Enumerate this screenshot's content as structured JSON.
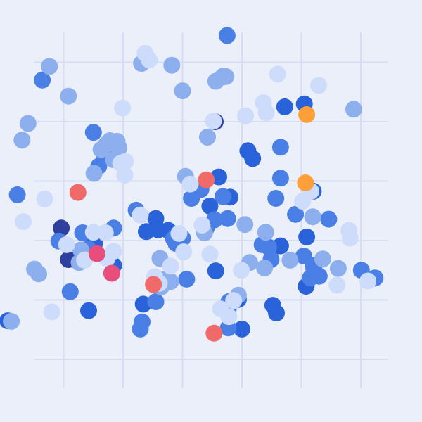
{
  "chart_data": {
    "type": "scatter",
    "title": "",
    "xlabel": "",
    "ylabel": "",
    "xlim": [
      0,
      6
    ],
    "ylim": [
      0,
      6
    ],
    "grid": true,
    "legend": "none",
    "colors": {
      "background": "#ebeff9",
      "grid": "#d6ddf1",
      "navy": "#2f3f9e",
      "blue": "#2a63d9",
      "mid_blue": "#4a80e6",
      "light_blue": "#8dafee",
      "pale_blue": "#cddcfb",
      "coral": "#f06a6a",
      "pink": "#e84d7c",
      "orange": "#ff9f3a"
    },
    "series": [
      {
        "color_key": "navy",
        "x": [
          0.96,
          1.08,
          3.55
        ],
        "y": [
          2.21,
          1.68,
          4.0
        ]
      },
      {
        "color_key": "blue",
        "x": [
          0.06,
          1.42,
          1.52,
          1.84,
          2.34,
          2.39,
          2.55,
          2.59,
          2.76,
          3.46,
          3.56,
          3.61,
          3.8,
          3.94,
          4.0,
          4.1,
          4.18,
          4.5,
          4.52,
          4.58,
          4.65,
          4.72,
          5.05,
          5.08,
          5.09,
          5.2
        ],
        "y": [
          0.65,
          0.82,
          1.95,
          1.58,
          0.93,
          2.15,
          2.37,
          2.18,
          2.17,
          2.58,
          1.49,
          3.07,
          2.73,
          1.01,
          0.51,
          3.51,
          3.38,
          1.86,
          0.91,
          0.78,
          1.91,
          4.25,
          4.3,
          1.23,
          2.06,
          2.83
        ]
      },
      {
        "color_key": "mid_blue",
        "x": [
          0.22,
          0.64,
          0.92,
          1.11,
          1.32,
          1.41,
          1.5,
          1.59,
          1.68,
          1.84,
          1.9,
          2.22,
          2.29,
          2.32,
          2.55,
          2.85,
          2.89,
          3.0,
          3.07,
          3.15,
          3.31,
          3.4,
          3.54,
          3.68,
          3.75,
          3.76,
          3.77,
          3.77,
          3.78,
          4.34,
          4.45,
          4.49,
          4.57,
          4.65,
          4.65,
          4.9,
          5.04,
          5.15,
          5.2,
          5.21,
          5.3,
          5.46,
          6.01,
          6.24
        ],
        "y": [
          2.77,
          4.7,
          1.99,
          1.14,
          2.13,
          1.86,
          3.82,
          3.25,
          3.45,
          2.21,
          3.37,
          2.51,
          0.51,
          0.63,
          0.97,
          2.03,
          1.95,
          2.04,
          1.35,
          2.71,
          2.86,
          2.21,
          2.35,
          2.74,
          5.45,
          2.37,
          0.53,
          0.85,
          0.97,
          1.93,
          1.89,
          1.68,
          2.71,
          3.05,
          3.57,
          2.44,
          1.74,
          1.37,
          1.58,
          1.53,
          1.4,
          2.36,
          1.5,
          1.37
        ]
      },
      {
        "color_key": "light_blue",
        "x": [
          0.12,
          0.3,
          0.4,
          0.51,
          0.58,
          0.76,
          1.08,
          1.26,
          1.29,
          1.51,
          1.63,
          1.72,
          1.78,
          1.84,
          1.9,
          1.93,
          2.31,
          2.58,
          2.62,
          2.64,
          2.68,
          2.8,
          2.82,
          3.0,
          3.05,
          3.37,
          3.42,
          3.56,
          3.67,
          3.69,
          3.73,
          3.94,
          4.05,
          4.13,
          4.38,
          4.4,
          4.81,
          5.19,
          5.36,
          5.62,
          5.88
        ],
        "y": [
          0.64,
          3.69,
          3.97,
          1.52,
          1.44,
          4.93,
          4.43,
          1.63,
          1.84,
          3.13,
          3.53,
          3.62,
          3.68,
          3.36,
          3.67,
          3.56,
          4.98,
          1.28,
          1.7,
          1.22,
          1.34,
          1.31,
          4.95,
          4.52,
          3.08,
          2.13,
          3.74,
          4.68,
          4.75,
          4.77,
          4.76,
          1.08,
          2.27,
          1.63,
          1.54,
          2.14,
          1.67,
          2.4,
          1.69,
          1.53,
          4.21
        ]
      },
      {
        "color_key": "pale_blue",
        "x": [
          0.32,
          0.68,
          0.8,
          1.05,
          1.35,
          1.5,
          1.7,
          1.73,
          1.84,
          1.96,
          1.99,
          2.03,
          2.04,
          2.29,
          2.37,
          2.44,
          2.53,
          2.61,
          2.8,
          2.94,
          3.02,
          3.13,
          3.33,
          3.46,
          3.52,
          3.64,
          3.78,
          3.86,
          3.99,
          4.06,
          4.36,
          4.41,
          4.6,
          5.02,
          5.16,
          5.29,
          5.6,
          5.8,
          5.82,
          6.12
        ],
        "y": [
          2.32,
          2.7,
          0.8,
          1.93,
          1.67,
          2.14,
          2.13,
          1.7,
          1.82,
          3.3,
          4.23,
          3.1,
          3.33,
          2.43,
          5.15,
          5.04,
          1.39,
          1.28,
          1.57,
          2.12,
          1.81,
          2.95,
          2.26,
          1.77,
          4.01,
          0.85,
          0.72,
          0.99,
          1.5,
          4.1,
          4.32,
          4.15,
          4.8,
          2.66,
          2.83,
          4.61,
          1.25,
          2.17,
          2.04,
          1.32
        ]
      },
      {
        "color_key": "coral",
        "x": [
          1.24,
          2.51,
          3.4,
          3.53
        ],
        "y": [
          2.81,
          1.26,
          3.02,
          0.44
        ]
      },
      {
        "color_key": "pink",
        "x": [
          1.56,
          1.81
        ],
        "y": [
          1.78,
          1.45
        ]
      },
      {
        "color_key": "orange",
        "x": [
          5.07,
          5.09
        ],
        "y": [
          2.97,
          4.12
        ]
      }
    ]
  }
}
